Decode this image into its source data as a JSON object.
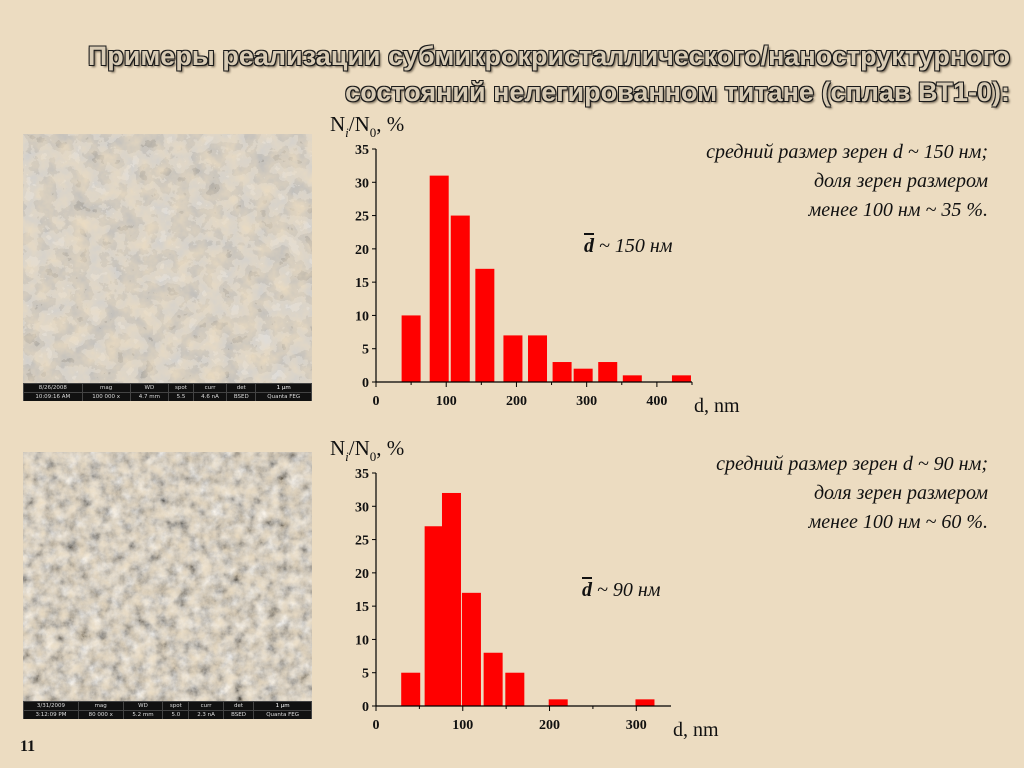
{
  "title": {
    "line1": "Примеры реализации субмикрокристаллического/наноструктурного",
    "line2": "состояний нелегированном титане (сплав ВТ1-0):"
  },
  "sem_images": [
    {
      "databar": {
        "date": "8/26/2008",
        "time": "10:09:16 AM",
        "mag_label": "mag",
        "mag": "100 000 x",
        "wd_label": "WD",
        "wd": "4.7 mm",
        "spot_label": "spot",
        "spot": "5.5",
        "curr_label": "curr",
        "curr": "4.6 nA",
        "det_label": "det",
        "det": "BSED",
        "scale": "1 μm",
        "instrument": "Quanta FEG"
      }
    },
    {
      "databar": {
        "date": "3/31/2009",
        "time": "3:12:09 PM",
        "mag_label": "mag",
        "mag": "80 000 x",
        "wd_label": "WD",
        "wd": "5.2 mm",
        "spot_label": "spot",
        "spot": "5.0",
        "curr_label": "curr",
        "curr": "2.3 nA",
        "det_label": "det",
        "det": "BSED",
        "scale": "1 μm",
        "instrument": "Quanta FEG"
      }
    }
  ],
  "notes": [
    {
      "line1": "средний размер зерен d ~ 150 нм;",
      "line2": "доля зерен размером",
      "line3": "менее 100 нм ~ 35 %.",
      "dbar_symbol": "d",
      "dbar_rest": " ~ 150 нм"
    },
    {
      "line1": "средний размер зерен d ~ 90 нм;",
      "line2": "доля зерен размером",
      "line3": "менее 100 нм ~ 60 %.",
      "dbar_symbol": "d",
      "dbar_rest": " ~ 90 нм"
    }
  ],
  "page_number": "11",
  "colors": {
    "bar": "#ff0000",
    "background": "#ecdcc1"
  },
  "chart_data": [
    {
      "type": "bar",
      "ylabel": "Ni/N0, %",
      "xlabel": "d, nm",
      "x": [
        50,
        90,
        120,
        155,
        195,
        230,
        265,
        295,
        330,
        365,
        435
      ],
      "values": [
        10,
        31,
        25,
        17,
        7,
        7,
        3,
        2,
        3,
        1,
        1
      ],
      "xlim": [
        0,
        450
      ],
      "ylim": [
        0,
        35
      ],
      "xticks": [
        0,
        100,
        200,
        300,
        400
      ],
      "yticks": [
        0,
        5,
        10,
        15,
        20,
        25,
        30,
        35
      ]
    },
    {
      "type": "bar",
      "ylabel": "Ni/N0, %",
      "xlabel": "d, nm",
      "x": [
        40,
        67,
        87,
        110,
        135,
        160,
        210,
        310
      ],
      "values": [
        5,
        27,
        32,
        17,
        8,
        5,
        1,
        1
      ],
      "xlim": [
        0,
        340
      ],
      "ylim": [
        0,
        35
      ],
      "xticks": [
        0,
        100,
        200,
        300
      ],
      "yticks": [
        0,
        5,
        10,
        15,
        20,
        25,
        30,
        35
      ]
    }
  ]
}
